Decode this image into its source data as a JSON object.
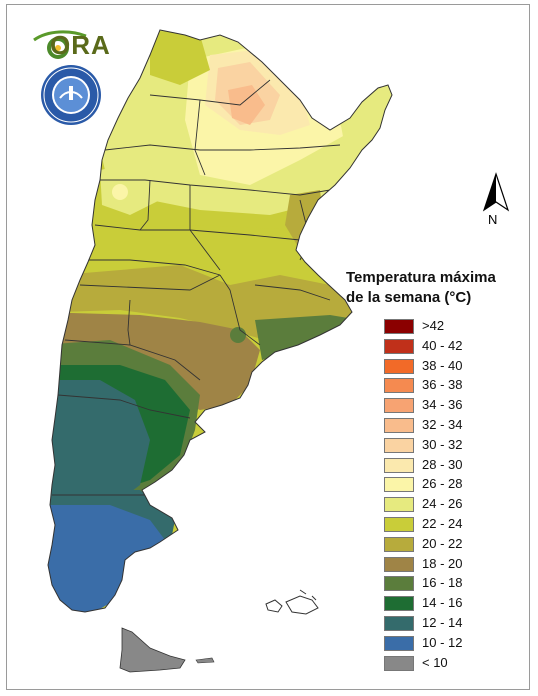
{
  "logo": {
    "text": "ORA"
  },
  "seal": {
    "icon": "smn-argentina-seal-icon",
    "lettering": "SERVICIO METEOROLÓGICO NACIONAL · ARGENTINA"
  },
  "north_arrow": {
    "label": "N",
    "icon": "north-arrow-icon"
  },
  "legend": {
    "title_line1": "Temperatura máxima",
    "title_line2": "de la semana (°C)",
    "items": [
      {
        "label": ">42",
        "color": "#8b0000"
      },
      {
        "label": "40 - 42",
        "color": "#c0301a"
      },
      {
        "label": "38 - 40",
        "color": "#f26a28"
      },
      {
        "label": "36 - 38",
        "color": "#f58a50"
      },
      {
        "label": "34 - 36",
        "color": "#f7a372"
      },
      {
        "label": "32 - 34",
        "color": "#f9bc8c"
      },
      {
        "label": "30 - 32",
        "color": "#fad3a2"
      },
      {
        "label": "28 - 30",
        "color": "#fbe9ae"
      },
      {
        "label": "26 - 28",
        "color": "#fbf5a8"
      },
      {
        "label": "24 - 26",
        "color": "#e6ea7f"
      },
      {
        "label": "22 - 24",
        "color": "#c9cd39"
      },
      {
        "label": "20 - 22",
        "color": "#b7ab3c"
      },
      {
        "label": "18 - 20",
        "color": "#9f8446"
      },
      {
        "label": "16 - 18",
        "color": "#5b7d3c"
      },
      {
        "label": "14 - 16",
        "color": "#1e6d33"
      },
      {
        "label": "12 - 14",
        "color": "#346b6c"
      },
      {
        "label": "10 - 12",
        "color": "#3a6da8"
      },
      {
        "label": "< 10",
        "color": "#888888"
      }
    ]
  }
}
